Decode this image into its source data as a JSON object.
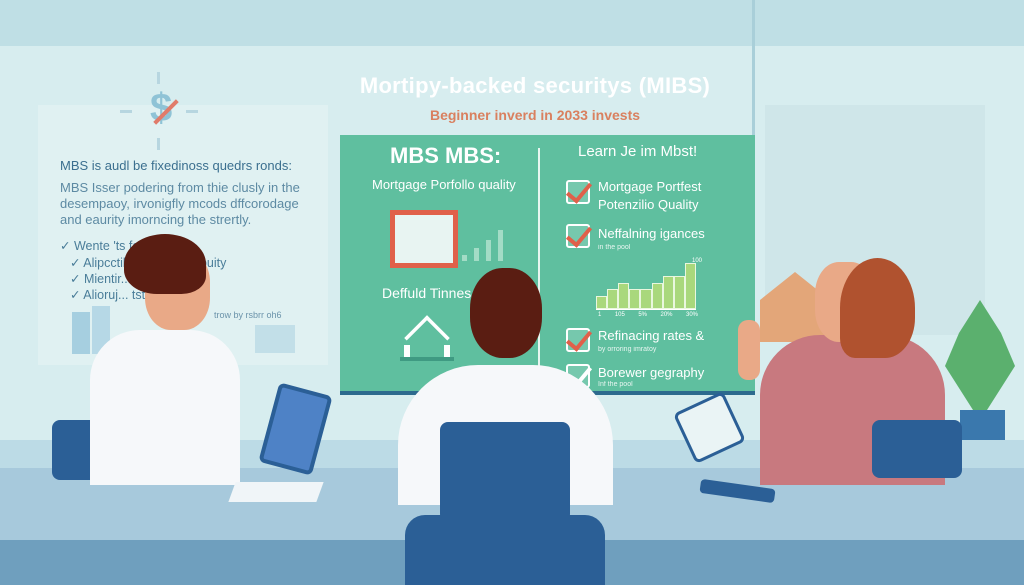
{
  "header": {
    "title": "Mortipy-backed securitys (MIBS)",
    "subtitle": "Beginner inverd in 2033 invests"
  },
  "left_panel": {
    "heading": "MBS is audl be fixedinoss quedrs ronds:",
    "paragraph": [
      "MBS Isser podering from thie clusly in the",
      "desempaoy, irvonigfly mcods dffcorodage",
      "and eaurity imorncing the strertly."
    ],
    "checklist": [
      "✓ Wente 'ts fart, l... rage",
      "✓ Alipcctil...    nor pactily puity",
      "✓ Mientir...    fpc senattory",
      "✓ Alioruj...    tst is secifies"
    ],
    "caption": "trow by rsbrr oh6"
  },
  "board": {
    "left_heading": "MBS MBS:",
    "portfolio_label": "Mortgage Porfollo quality",
    "default_label": "Deffuld Tinnes",
    "right_heading": "Learn Je im Mbst!",
    "items": [
      {
        "title": "Mortgage Portfest",
        "title2": "Potenzilio Quality",
        "sub": ""
      },
      {
        "title": "Neffalning igances",
        "sub": "in the pool"
      },
      {
        "title": "Refinacing rates &",
        "sub": "by orroring imratoy"
      },
      {
        "title": "Borewer gegraphy",
        "sub": "Inf the pool"
      }
    ],
    "mini_chart": {
      "tick_labels": [
        "1",
        "105",
        "5%",
        "20%",
        "30%"
      ],
      "top_label": "100",
      "values": [
        2,
        3,
        4,
        3,
        3,
        4,
        5,
        5,
        7
      ]
    }
  },
  "colors": {
    "board": "#5fbf9f",
    "title": "#ffffff",
    "subtitle": "#d9805f",
    "chair": "#2b5f96",
    "check": "#e0604a"
  }
}
